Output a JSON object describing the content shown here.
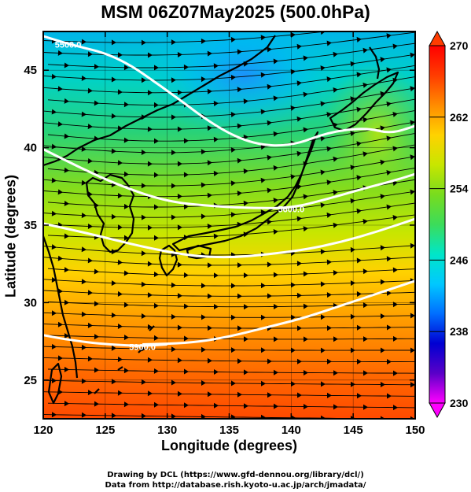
{
  "title": "MSM 06Z07May2025 (500.0hPa)",
  "axes": {
    "xlabel": "Longitude (degrees)",
    "ylabel": "Latitude  (degrees)",
    "xlim": [
      120,
      150
    ],
    "ylim": [
      22.5,
      47.5
    ],
    "xticks": [
      "120",
      "125",
      "130",
      "135",
      "140",
      "145",
      "150"
    ],
    "yticks": [
      "25",
      "30",
      "35",
      "40",
      "45"
    ]
  },
  "colorbar": {
    "labels": [
      "270",
      "262",
      "254",
      "246",
      "238",
      "230"
    ],
    "min": 230,
    "max": 270,
    "colors": [
      "#ff00ff",
      "#5a00c8",
      "#0000d2",
      "#006eff",
      "#00c8ff",
      "#00e6c8",
      "#3cdc5a",
      "#78dc1e",
      "#c8e600",
      "#ffd200",
      "#ff8c00",
      "#ff3c00",
      "#ff0000"
    ]
  },
  "contours": [
    {
      "label": "5500.0",
      "lon": [
        120,
        122,
        126,
        130,
        134,
        137,
        140,
        143,
        146,
        148,
        150
      ],
      "lat": [
        47.2,
        46.7,
        45.9,
        43.7,
        41.3,
        40.2,
        40.1,
        41.0,
        41.3,
        40.9,
        41.4
      ]
    },
    {
      "label": "5600.0",
      "lon": [
        120,
        123,
        126,
        130,
        134,
        137,
        140,
        143,
        146,
        148,
        150
      ],
      "lat": [
        39.9,
        38.7,
        37.6,
        36.5,
        36.2,
        36.1,
        36.1,
        36.7,
        37.4,
        37.8,
        38.3
      ]
    },
    {
      "label": "",
      "lon": [
        120,
        124,
        128,
        132,
        135,
        138,
        141,
        144,
        147,
        150
      ],
      "lat": [
        35.1,
        34.4,
        33.6,
        33.0,
        32.9,
        33.1,
        33.4,
        33.9,
        34.6,
        35.4
      ]
    },
    {
      "label": "",
      "lon": [
        128,
        132,
        135,
        138,
        141,
        144,
        147,
        150
      ],
      "lat": [
        27.3,
        27.4,
        27.8,
        28.4,
        29.0,
        29.8,
        30.6,
        31.4
      ]
    },
    {
      "label": "5900.0",
      "lon": [
        120,
        122,
        125,
        128,
        130
      ],
      "lat": [
        27.9,
        27.6,
        27.3,
        27.2,
        27.3
      ]
    }
  ],
  "credits": {
    "line1": "Drawing by DCL (https://www.gfd-dennou.org/library/dcl/)",
    "line2": "Data from http://database.rish.kyoto-u.ac.jp/arch/jmadata/"
  }
}
